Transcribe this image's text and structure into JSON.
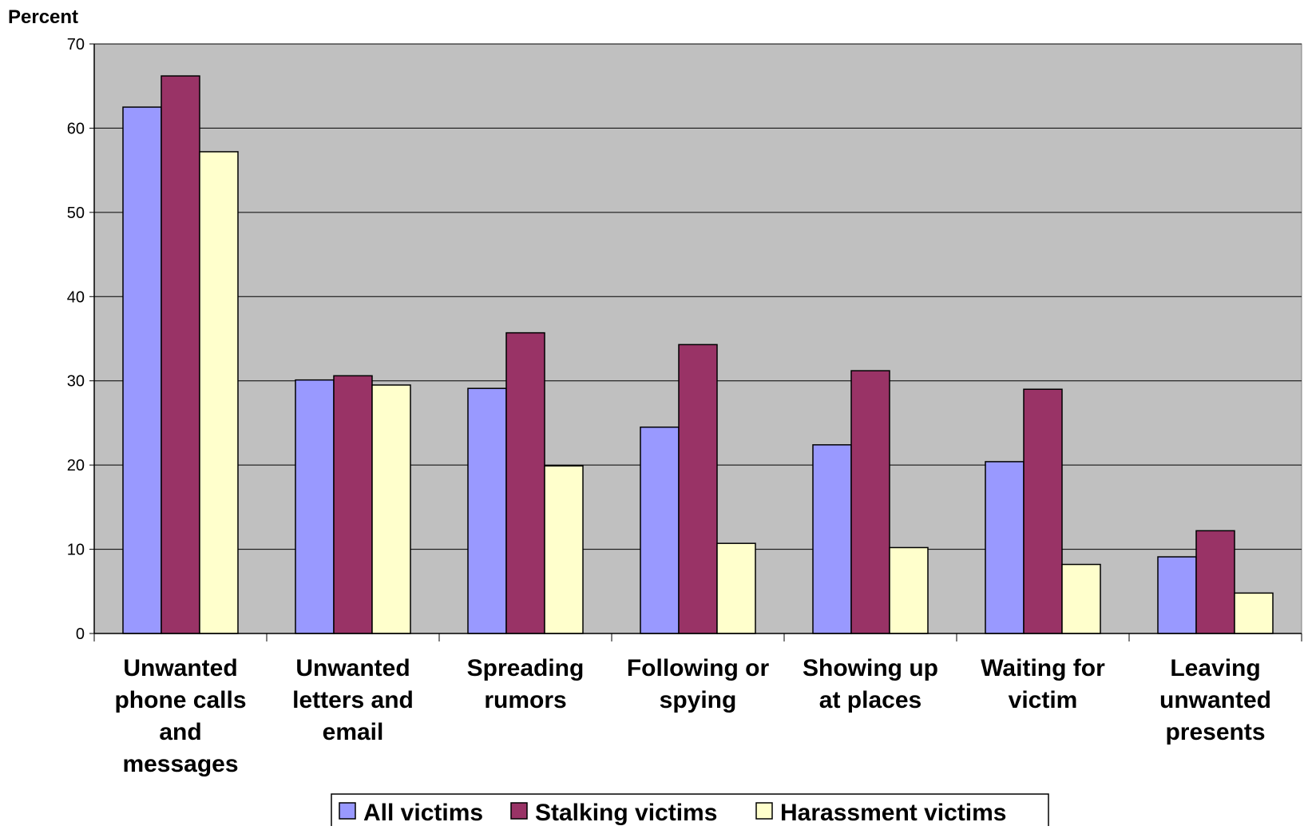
{
  "chart_data": {
    "type": "bar",
    "ylabel": "Percent",
    "ylim": [
      0,
      70
    ],
    "yticks": [
      0,
      10,
      20,
      30,
      40,
      50,
      60,
      70
    ],
    "grid": true,
    "legend_position": "bottom",
    "categories": [
      "Unwanted phone calls and messages",
      "Unwanted letters and email",
      "Spreading rumors",
      "Following or spying",
      "Showing up at places",
      "Waiting for victim",
      "Leaving unwanted presents"
    ],
    "category_lines": [
      [
        "Unwanted",
        "phone calls",
        "and",
        "messages"
      ],
      [
        "Unwanted",
        "letters and",
        "email"
      ],
      [
        "Spreading",
        "rumors"
      ],
      [
        "Following or",
        "spying"
      ],
      [
        "Showing up",
        "at places"
      ],
      [
        "Waiting for",
        "victim"
      ],
      [
        "Leaving",
        "unwanted",
        "presents"
      ]
    ],
    "series": [
      {
        "name": "All victims",
        "color": "#9999ff",
        "values": [
          62.5,
          30.1,
          29.1,
          24.5,
          22.4,
          20.4,
          9.1
        ]
      },
      {
        "name": "Stalking victims",
        "color": "#993366",
        "values": [
          66.2,
          30.6,
          35.7,
          34.3,
          31.2,
          29.0,
          12.2
        ]
      },
      {
        "name": "Harassment victims",
        "color": "#ffffcc",
        "values": [
          57.2,
          29.5,
          19.9,
          10.7,
          10.2,
          8.2,
          4.8
        ]
      }
    ],
    "plot_background": "#c0c0c0"
  }
}
